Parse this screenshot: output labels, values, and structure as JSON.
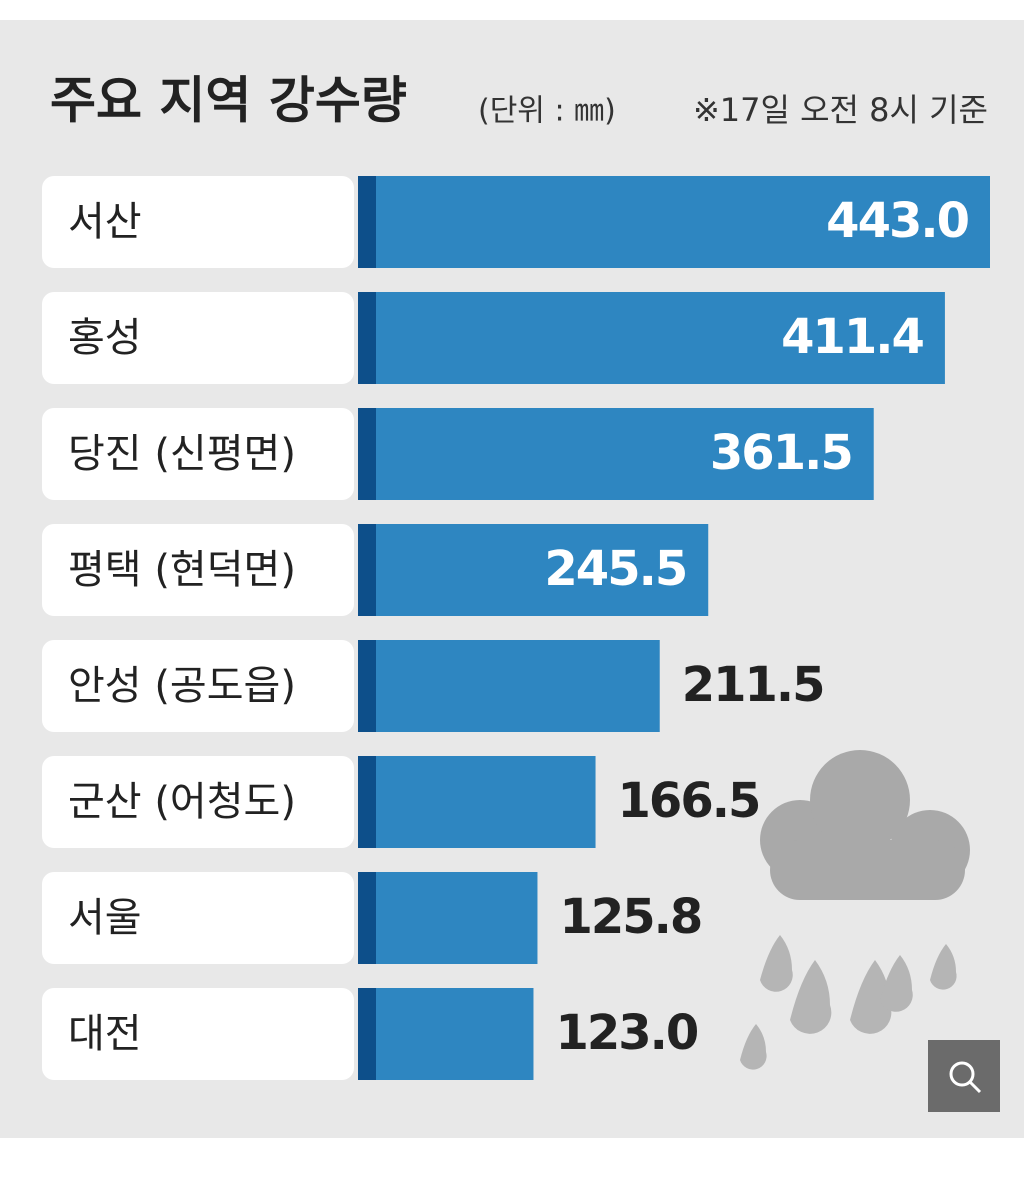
{
  "chart_data": {
    "type": "hbar",
    "title": "주요 지역 강수량",
    "subtitle": "(단위 : ㎜)",
    "note": "※17일 오전 8시 기준",
    "categories": [
      "서산",
      "홍성",
      "당진 (신평면)",
      "평택 (현덕면)",
      "안성 (공도읍)",
      "군산 (어청도)",
      "서울",
      "대전"
    ],
    "values": [
      443.0,
      411.4,
      361.5,
      245.5,
      211.5,
      166.5,
      125.8,
      123.0
    ],
    "value_labels": [
      "443.0",
      "411.4",
      "361.5",
      "245.5",
      "211.5",
      "166.5",
      "125.8",
      "123.0"
    ],
    "color": "#2e86c1"
  }
}
